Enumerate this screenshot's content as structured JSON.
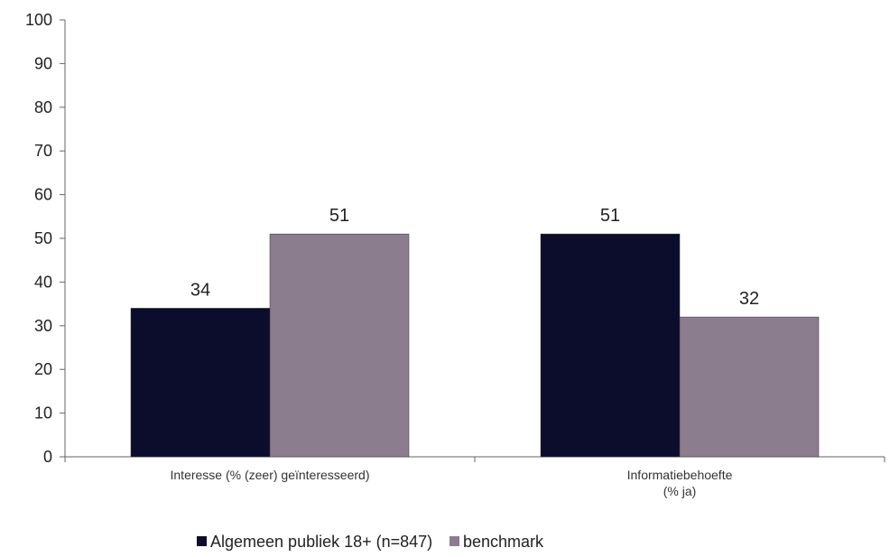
{
  "chart_data": {
    "type": "bar",
    "categories": [
      [
        "Interesse (% (zeer) geïnteresseerd)"
      ],
      [
        "Informatiebehoefte",
        "(% ja)"
      ]
    ],
    "series": [
      {
        "name": "Algemeen publiek 18+ (n=847)",
        "values": [
          34,
          51
        ],
        "color": "#0c0c2c"
      },
      {
        "name": "benchmark",
        "values": [
          51,
          32
        ],
        "color": "#8b7c8e"
      }
    ],
    "ylim": [
      0,
      100
    ],
    "yticks": [
      0,
      10,
      20,
      30,
      40,
      50,
      60,
      70,
      80,
      90,
      100
    ],
    "data_labels": true,
    "grid": false,
    "legend_position": "bottom-center",
    "title": "",
    "xlabel": "",
    "ylabel": ""
  }
}
